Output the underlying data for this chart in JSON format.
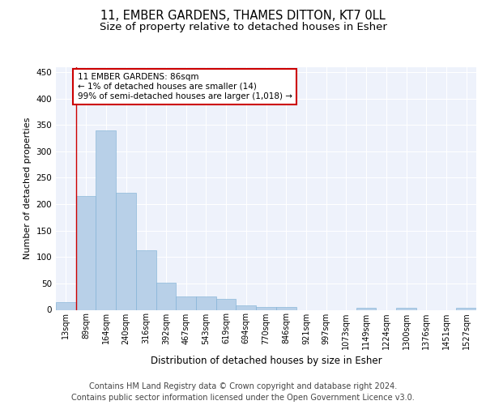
{
  "title": "11, EMBER GARDENS, THAMES DITTON, KT7 0LL",
  "subtitle": "Size of property relative to detached houses in Esher",
  "xlabel": "Distribution of detached houses by size in Esher",
  "ylabel": "Number of detached properties",
  "bar_color": "#b8d0e8",
  "bar_edge_color": "#7aafd4",
  "background_color": "#eef2fb",
  "grid_color": "#ffffff",
  "categories": [
    "13sqm",
    "89sqm",
    "164sqm",
    "240sqm",
    "316sqm",
    "392sqm",
    "467sqm",
    "543sqm",
    "619sqm",
    "694sqm",
    "770sqm",
    "846sqm",
    "921sqm",
    "997sqm",
    "1073sqm",
    "1149sqm",
    "1224sqm",
    "1300sqm",
    "1376sqm",
    "1451sqm",
    "1527sqm"
  ],
  "values": [
    15,
    215,
    340,
    222,
    113,
    52,
    26,
    25,
    20,
    9,
    5,
    5,
    0,
    0,
    0,
    4,
    0,
    4,
    0,
    0,
    4
  ],
  "annotation_line1": "11 EMBER GARDENS: 86sqm",
  "annotation_line2": "← 1% of detached houses are smaller (14)",
  "annotation_line3": "99% of semi-detached houses are larger (1,018) →",
  "annotation_box_color": "#ffffff",
  "annotation_box_edge_color": "#cc0000",
  "vline_x_index": 0.5,
  "ylim": [
    0,
    460
  ],
  "yticks": [
    0,
    50,
    100,
    150,
    200,
    250,
    300,
    350,
    400,
    450
  ],
  "footer": "Contains HM Land Registry data © Crown copyright and database right 2024.\nContains public sector information licensed under the Open Government Licence v3.0.",
  "title_fontsize": 10.5,
  "subtitle_fontsize": 9.5,
  "xlabel_fontsize": 8.5,
  "ylabel_fontsize": 8.0,
  "tick_fontsize": 7.0,
  "annotation_fontsize": 7.5,
  "footer_fontsize": 7.0
}
